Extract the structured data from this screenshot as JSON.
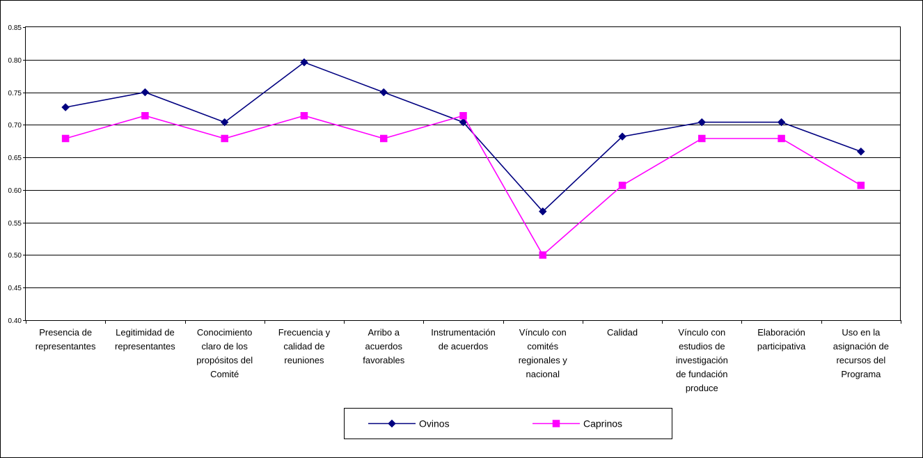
{
  "chart_data": {
    "type": "line",
    "categories": [
      [
        "Presencia de",
        "representantes"
      ],
      [
        "Legitimidad de",
        "representantes"
      ],
      [
        "Conocimiento",
        "claro de los",
        "propósitos del",
        "Comité"
      ],
      [
        "Frecuencia y",
        "calidad de",
        "reuniones"
      ],
      [
        "Arribo a",
        "acuerdos",
        "favorables"
      ],
      [
        "Instrumentación",
        "de acuerdos"
      ],
      [
        "Vínculo con",
        "comités",
        "regionales y",
        "nacional"
      ],
      [
        "Calidad"
      ],
      [
        "Vínculo con",
        "estudios de",
        "investigación",
        "de fundación",
        "produce"
      ],
      [
        "Elaboración",
        "participativa"
      ],
      [
        "Uso en la",
        "asignación de",
        "recursos del",
        "Programa"
      ]
    ],
    "series": [
      {
        "name": "Ovinos",
        "color": "#000080",
        "marker": "diamond",
        "values": [
          0.727,
          0.75,
          0.704,
          0.796,
          0.75,
          0.704,
          0.567,
          0.682,
          0.704,
          0.704,
          0.659
        ]
      },
      {
        "name": "Caprinos",
        "color": "#FF00FF",
        "marker": "square",
        "values": [
          0.679,
          0.714,
          0.679,
          0.714,
          0.679,
          0.714,
          0.5,
          0.607,
          0.679,
          0.679,
          0.607
        ]
      }
    ],
    "ylim": [
      0.4,
      0.85
    ],
    "yticks": [
      "0.40",
      "0.45",
      "0.50",
      "0.55",
      "0.60",
      "0.65",
      "0.70",
      "0.75",
      "0.80",
      "0.85"
    ],
    "grid": "horizontal",
    "legend_position": "bottom"
  }
}
